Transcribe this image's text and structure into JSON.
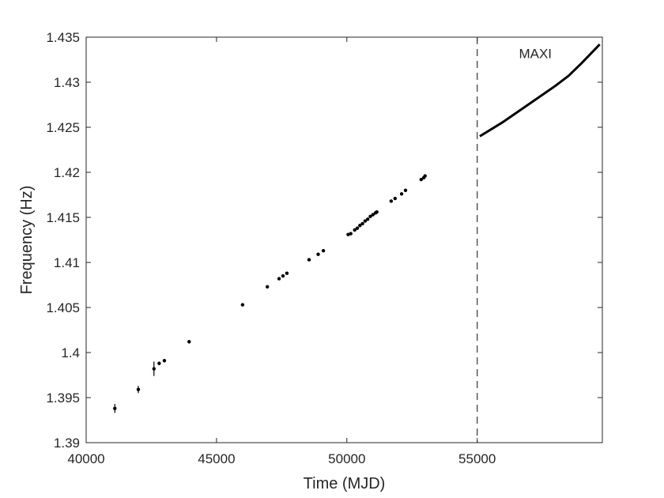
{
  "chart_data": {
    "type": "scatter",
    "xlabel": "Time (MJD)",
    "ylabel": "Frequency (Hz)",
    "xlim": [
      40000,
      59800
    ],
    "ylim": [
      1.39,
      1.435
    ],
    "x_ticks": [
      40000,
      45000,
      50000,
      55000
    ],
    "x_tick_labels": [
      "40000",
      "45000",
      "50000",
      "55000"
    ],
    "y_ticks": [
      1.39,
      1.395,
      1.4,
      1.405,
      1.41,
      1.415,
      1.42,
      1.425,
      1.43,
      1.435
    ],
    "y_tick_labels": [
      "1.39",
      "1.395",
      "1.4",
      "1.405",
      "1.41",
      "1.415",
      "1.42",
      "1.425",
      "1.43",
      "1.435"
    ],
    "grid": false,
    "series": [
      {
        "kind": "points",
        "color": "#000000",
        "points": [
          {
            "x": 41100,
            "y": 1.3938,
            "err": 0.0005
          },
          {
            "x": 42000,
            "y": 1.3959,
            "err": 0.0004
          },
          {
            "x": 42600,
            "y": 1.3982,
            "err": 0.0008
          },
          {
            "x": 42800,
            "y": 1.3988,
            "err": 0.0002
          },
          {
            "x": 43000,
            "y": 1.3991,
            "err": 0.0002
          },
          {
            "x": 43950,
            "y": 1.4012,
            "err": 0.0002
          },
          {
            "x": 46000,
            "y": 1.4053,
            "err": 0.0001
          },
          {
            "x": 46950,
            "y": 1.4073,
            "err": 0.0001
          },
          {
            "x": 47400,
            "y": 1.4082,
            "err": 0.0001
          },
          {
            "x": 47550,
            "y": 1.4085,
            "err": 0.0001
          },
          {
            "x": 47700,
            "y": 1.4088,
            "err": 0.0001
          },
          {
            "x": 48550,
            "y": 1.4103,
            "err": 0.0001
          },
          {
            "x": 48900,
            "y": 1.4109,
            "err": 0.0001
          },
          {
            "x": 49100,
            "y": 1.4113,
            "err": 0.0001
          },
          {
            "x": 50050,
            "y": 1.4131,
            "err": 0.0001
          },
          {
            "x": 50150,
            "y": 1.4132,
            "err": 0.0001
          },
          {
            "x": 50300,
            "y": 1.4136,
            "err": 0.0001
          },
          {
            "x": 50400,
            "y": 1.4138,
            "err": 0.0001
          },
          {
            "x": 50500,
            "y": 1.4141,
            "err": 0.0001
          },
          {
            "x": 50600,
            "y": 1.4143,
            "err": 0.0001
          },
          {
            "x": 50700,
            "y": 1.4146,
            "err": 0.0001
          },
          {
            "x": 50800,
            "y": 1.4148,
            "err": 0.0001
          },
          {
            "x": 50900,
            "y": 1.4151,
            "err": 0.0001
          },
          {
            "x": 51000,
            "y": 1.4153,
            "err": 0.0001
          },
          {
            "x": 51100,
            "y": 1.4155,
            "err": 0.0001
          },
          {
            "x": 51150,
            "y": 1.4156,
            "err": 0.0001
          },
          {
            "x": 51700,
            "y": 1.4168,
            "err": 0.0001
          },
          {
            "x": 51850,
            "y": 1.4171,
            "err": 0.0001
          },
          {
            "x": 52100,
            "y": 1.4176,
            "err": 0.0001
          },
          {
            "x": 52250,
            "y": 1.418,
            "err": 0.0001
          },
          {
            "x": 52850,
            "y": 1.4192,
            "err": 0.0001
          },
          {
            "x": 52950,
            "y": 1.4194,
            "err": 0.0001
          },
          {
            "x": 53000,
            "y": 1.4196,
            "err": 0.0001
          }
        ]
      },
      {
        "kind": "line",
        "color": "#000000",
        "points": [
          {
            "x": 55100,
            "y": 1.424
          },
          {
            "x": 56000,
            "y": 1.4256
          },
          {
            "x": 57000,
            "y": 1.4276
          },
          {
            "x": 58000,
            "y": 1.4296
          },
          {
            "x": 58500,
            "y": 1.4307
          },
          {
            "x": 59000,
            "y": 1.4321
          },
          {
            "x": 59700,
            "y": 1.4342
          }
        ]
      }
    ],
    "vline": {
      "x": 55000,
      "style": "dashed",
      "color": "#000000"
    },
    "annotations": [
      {
        "text": "MAXI",
        "x": 56600,
        "y": 1.4332
      }
    ]
  }
}
